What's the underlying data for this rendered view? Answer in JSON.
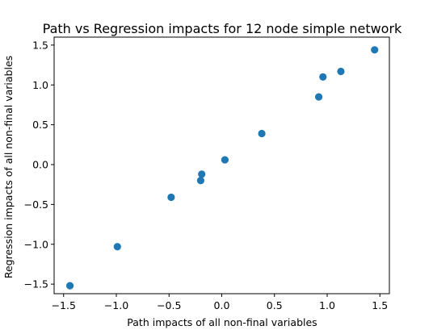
{
  "chart_data": {
    "type": "scatter",
    "title": "Path vs Regression impacts for 12 node simple network",
    "xlabel": "Path impacts of all non-final variables",
    "ylabel": "Regression impacts of all non-final variables",
    "xlim": [
      -1.59,
      1.59
    ],
    "ylim": [
      -1.62,
      1.6
    ],
    "xticks": [
      -1.5,
      -1.0,
      -0.5,
      0.0,
      0.5,
      1.0,
      1.5
    ],
    "xtick_labels": [
      "−1.5",
      "−1.0",
      "−0.5",
      "0.0",
      "0.5",
      "1.0",
      "1.5"
    ],
    "yticks": [
      -1.5,
      -1.0,
      -0.5,
      0.0,
      0.5,
      1.0,
      1.5
    ],
    "ytick_labels": [
      "−1.5",
      "−1.0",
      "−0.5",
      "0.0",
      "0.5",
      "1.0",
      "1.5"
    ],
    "grid": false,
    "marker_color": "#1f77b4",
    "points": [
      {
        "x": -1.44,
        "y": -1.52
      },
      {
        "x": -0.99,
        "y": -1.03
      },
      {
        "x": -0.48,
        "y": -0.41
      },
      {
        "x": -0.2,
        "y": -0.2
      },
      {
        "x": -0.19,
        "y": -0.12
      },
      {
        "x": 0.03,
        "y": 0.06
      },
      {
        "x": 0.38,
        "y": 0.39
      },
      {
        "x": 0.92,
        "y": 0.85
      },
      {
        "x": 0.96,
        "y": 1.1
      },
      {
        "x": 1.13,
        "y": 1.17
      },
      {
        "x": 1.45,
        "y": 1.44
      }
    ]
  }
}
